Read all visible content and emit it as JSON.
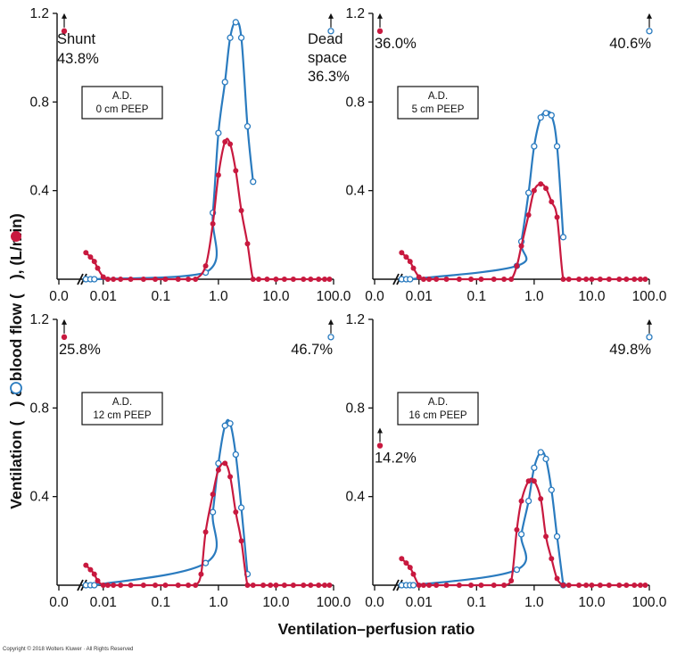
{
  "figure": {
    "ylabel_parts": [
      "Ventilation (",
      ")  &  blood flow (",
      "),  (L/min)"
    ],
    "xlabel": "Ventilation–perfusion ratio",
    "copyright": "Copyright © 2018 Wolters Kluwer · All Rights Reserved",
    "colors": {
      "ventilation": "#2a7bbf",
      "blood_flow": "#c8193f",
      "axis": "#111111"
    },
    "x_ticks": [
      "0.0",
      "0.01",
      "0.1",
      "1.0",
      "10.0",
      "100.0"
    ],
    "y_ticks": [
      "0.4",
      "0.8",
      "1.2"
    ]
  },
  "chart_data": [
    {
      "type": "line",
      "box_line1": "A.D.",
      "box_line2": "0 cm PEEP",
      "xscale": "log",
      "xlim": [
        0.003,
        100
      ],
      "ylim": [
        0,
        1.2
      ],
      "shunt": {
        "label": "Shunt",
        "value": "43.8%"
      },
      "deadspace": {
        "label": "Dead space",
        "value": "36.3%"
      },
      "series": [
        {
          "name": "Ventilation",
          "marker": "open circle",
          "x": [
            0.005,
            0.006,
            0.007,
            0.6,
            0.8,
            1.0,
            1.3,
            1.6,
            2.0,
            2.5,
            3.2,
            4.0
          ],
          "y": [
            0,
            0,
            0,
            0.03,
            0.3,
            0.66,
            0.89,
            1.09,
            1.16,
            1.09,
            0.69,
            0.44
          ]
        },
        {
          "name": "Blood flow",
          "marker": "filled circle",
          "x": [
            0.005,
            0.006,
            0.007,
            0.008,
            0.01,
            0.012,
            0.015,
            0.02,
            0.03,
            0.05,
            0.08,
            0.12,
            0.2,
            0.3,
            0.4,
            0.6,
            0.8,
            1.0,
            1.3,
            1.6,
            2.0,
            2.5,
            3.2,
            4.0,
            5,
            7,
            10,
            14,
            20,
            30,
            40,
            55,
            70,
            85
          ],
          "y": [
            0.12,
            0.1,
            0.08,
            0.05,
            0.01,
            0,
            0,
            0,
            0,
            0,
            0,
            0,
            0,
            0,
            0,
            0.06,
            0.25,
            0.47,
            0.62,
            0.61,
            0.49,
            0.31,
            0.16,
            0,
            0,
            0,
            0,
            0,
            0,
            0,
            0,
            0,
            0,
            0
          ]
        }
      ]
    },
    {
      "type": "line",
      "box_line1": "A.D.",
      "box_line2": "5 cm PEEP",
      "xscale": "log",
      "xlim": [
        0.003,
        100
      ],
      "ylim": [
        0,
        1.2
      ],
      "shunt": {
        "label": "",
        "value": "36.0%"
      },
      "deadspace": {
        "label": "",
        "value": "40.6%"
      },
      "series": [
        {
          "name": "Ventilation",
          "marker": "open circle",
          "x": [
            0.005,
            0.006,
            0.007,
            0.5,
            0.6,
            0.8,
            1.0,
            1.3,
            1.6,
            2.0,
            2.5,
            3.2
          ],
          "y": [
            0,
            0,
            0,
            0.06,
            0.17,
            0.39,
            0.6,
            0.73,
            0.75,
            0.74,
            0.6,
            0.19
          ]
        },
        {
          "name": "Blood flow",
          "marker": "filled circle",
          "x": [
            0.005,
            0.006,
            0.007,
            0.008,
            0.01,
            0.012,
            0.015,
            0.02,
            0.03,
            0.05,
            0.08,
            0.12,
            0.2,
            0.3,
            0.4,
            0.5,
            0.6,
            0.8,
            1.0,
            1.3,
            1.6,
            2.0,
            2.5,
            3.2,
            4,
            6,
            8,
            10,
            14,
            20,
            30,
            40,
            55,
            70,
            85
          ],
          "y": [
            0.12,
            0.1,
            0.08,
            0.05,
            0.01,
            0,
            0,
            0,
            0,
            0,
            0,
            0,
            0,
            0,
            0,
            0.06,
            0.15,
            0.29,
            0.4,
            0.43,
            0.41,
            0.35,
            0.28,
            0,
            0,
            0,
            0,
            0,
            0,
            0,
            0,
            0,
            0,
            0,
            0
          ]
        }
      ]
    },
    {
      "type": "line",
      "box_line1": "A.D.",
      "box_line2": "12 cm PEEP",
      "xscale": "log",
      "xlim": [
        0.003,
        100
      ],
      "ylim": [
        0,
        1.2
      ],
      "shunt": {
        "label": "",
        "value": "25.8%"
      },
      "deadspace": {
        "label": "",
        "value": "46.7%"
      },
      "series": [
        {
          "name": "Ventilation",
          "marker": "open circle",
          "x": [
            0.005,
            0.006,
            0.007,
            0.6,
            0.8,
            1.0,
            1.3,
            1.6,
            2.0,
            2.5,
            3.2
          ],
          "y": [
            0,
            0,
            0,
            0.1,
            0.33,
            0.55,
            0.72,
            0.73,
            0.59,
            0.35,
            0.05
          ]
        },
        {
          "name": "Blood flow",
          "marker": "filled circle",
          "x": [
            0.005,
            0.006,
            0.007,
            0.008,
            0.01,
            0.012,
            0.015,
            0.02,
            0.03,
            0.05,
            0.08,
            0.12,
            0.2,
            0.3,
            0.4,
            0.5,
            0.6,
            0.8,
            1.0,
            1.3,
            1.6,
            2.0,
            2.5,
            3.2,
            4,
            6,
            8,
            10,
            14,
            20,
            30,
            40,
            55,
            70,
            85
          ],
          "y": [
            0.09,
            0.07,
            0.05,
            0.02,
            0,
            0,
            0,
            0,
            0,
            0,
            0,
            0,
            0,
            0,
            0,
            0.05,
            0.24,
            0.41,
            0.52,
            0.55,
            0.49,
            0.33,
            0.2,
            0,
            0,
            0,
            0,
            0,
            0,
            0,
            0,
            0,
            0,
            0,
            0
          ]
        }
      ]
    },
    {
      "type": "line",
      "box_line1": "A.D.",
      "box_line2": "16 cm PEEP",
      "xscale": "log",
      "xlim": [
        0.003,
        100
      ],
      "ylim": [
        0,
        1.2
      ],
      "shunt": {
        "label": "",
        "value": "14.2%"
      },
      "deadspace": {
        "label": "",
        "value": "49.8%"
      },
      "series": [
        {
          "name": "Ventilation",
          "marker": "open circle",
          "x": [
            0.005,
            0.006,
            0.007,
            0.008,
            0.5,
            0.6,
            0.8,
            1.0,
            1.3,
            1.6,
            2.0,
            2.5,
            3.2
          ],
          "y": [
            0,
            0,
            0,
            0,
            0.07,
            0.23,
            0.38,
            0.53,
            0.6,
            0.57,
            0.43,
            0.22,
            0
          ]
        },
        {
          "name": "Blood flow",
          "marker": "filled circle",
          "x": [
            0.005,
            0.006,
            0.007,
            0.008,
            0.01,
            0.012,
            0.015,
            0.02,
            0.03,
            0.05,
            0.08,
            0.12,
            0.2,
            0.3,
            0.4,
            0.5,
            0.6,
            0.8,
            1.0,
            1.3,
            1.6,
            2.0,
            2.5,
            3.2,
            4,
            6,
            8,
            10,
            14,
            20,
            30,
            40,
            55,
            70,
            85
          ],
          "y": [
            0.12,
            0.1,
            0.08,
            0.05,
            0,
            0,
            0,
            0,
            0,
            0,
            0,
            0,
            0,
            0,
            0.02,
            0.25,
            0.38,
            0.47,
            0.47,
            0.39,
            0.22,
            0.12,
            0.03,
            0,
            0,
            0,
            0,
            0,
            0,
            0,
            0,
            0,
            0,
            0,
            0
          ]
        }
      ]
    }
  ]
}
